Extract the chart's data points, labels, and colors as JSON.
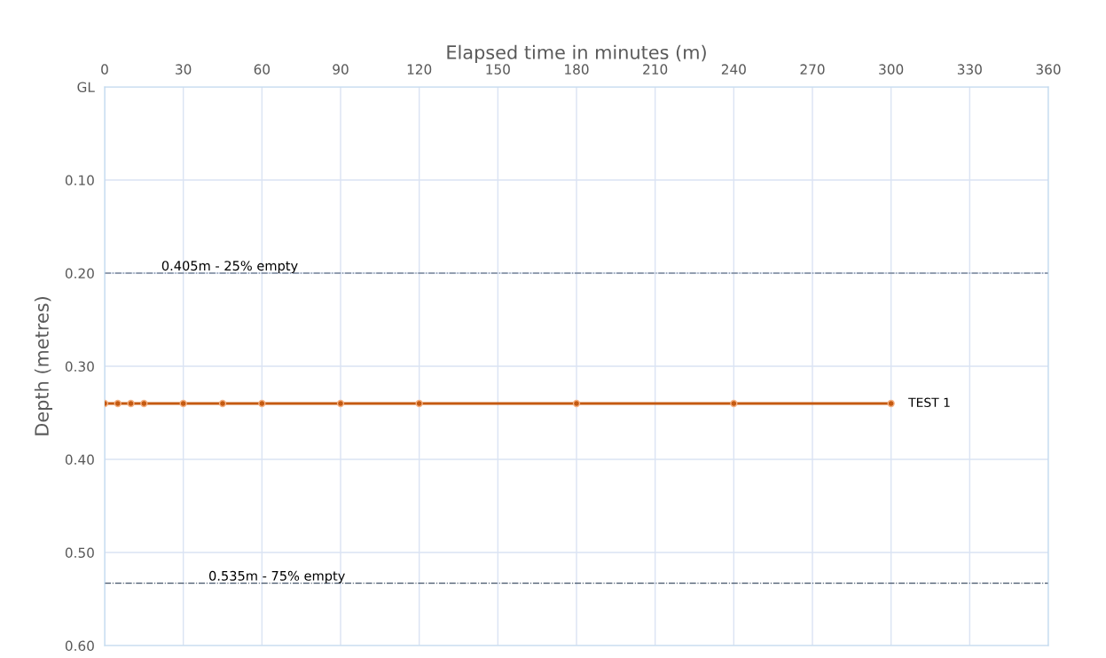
{
  "chart_data": {
    "type": "line",
    "xlabel": "Elapsed time in minutes (m)",
    "ylabel": "Depth (metres)",
    "x": [
      0,
      5,
      10,
      15,
      30,
      45,
      60,
      90,
      120,
      180,
      240,
      300
    ],
    "series": [
      {
        "name": "TEST 1",
        "color": "#c55a11",
        "values": [
          0.34,
          0.34,
          0.34,
          0.34,
          0.34,
          0.34,
          0.34,
          0.34,
          0.34,
          0.34,
          0.34,
          0.34
        ]
      }
    ],
    "xlim": [
      0,
      360
    ],
    "xticks": [
      0,
      30,
      60,
      90,
      120,
      150,
      180,
      210,
      240,
      270,
      300,
      330,
      360
    ],
    "ylim": [
      0.6,
      0
    ],
    "yticks": [
      {
        "value": 0,
        "label": "GL"
      },
      {
        "value": 0.1,
        "label": "0.10"
      },
      {
        "value": 0.2,
        "label": "0.20"
      },
      {
        "value": 0.3,
        "label": "0.30"
      },
      {
        "value": 0.4,
        "label": "0.40"
      },
      {
        "value": 0.5,
        "label": "0.50"
      },
      {
        "value": 0.6,
        "label": "0.60"
      }
    ],
    "ref_lines": [
      {
        "axis": "y",
        "value": 0.2,
        "label": "0.405m - 25% empty",
        "color": "#44546a",
        "line_style": "dashdot"
      },
      {
        "axis": "y",
        "value": 0.533,
        "label": "0.535m - 75% empty",
        "color": "#44546a",
        "line_style": "dashdot"
      }
    ],
    "grid": true,
    "legend": false,
    "marker": "circle",
    "line_style": "solid"
  }
}
